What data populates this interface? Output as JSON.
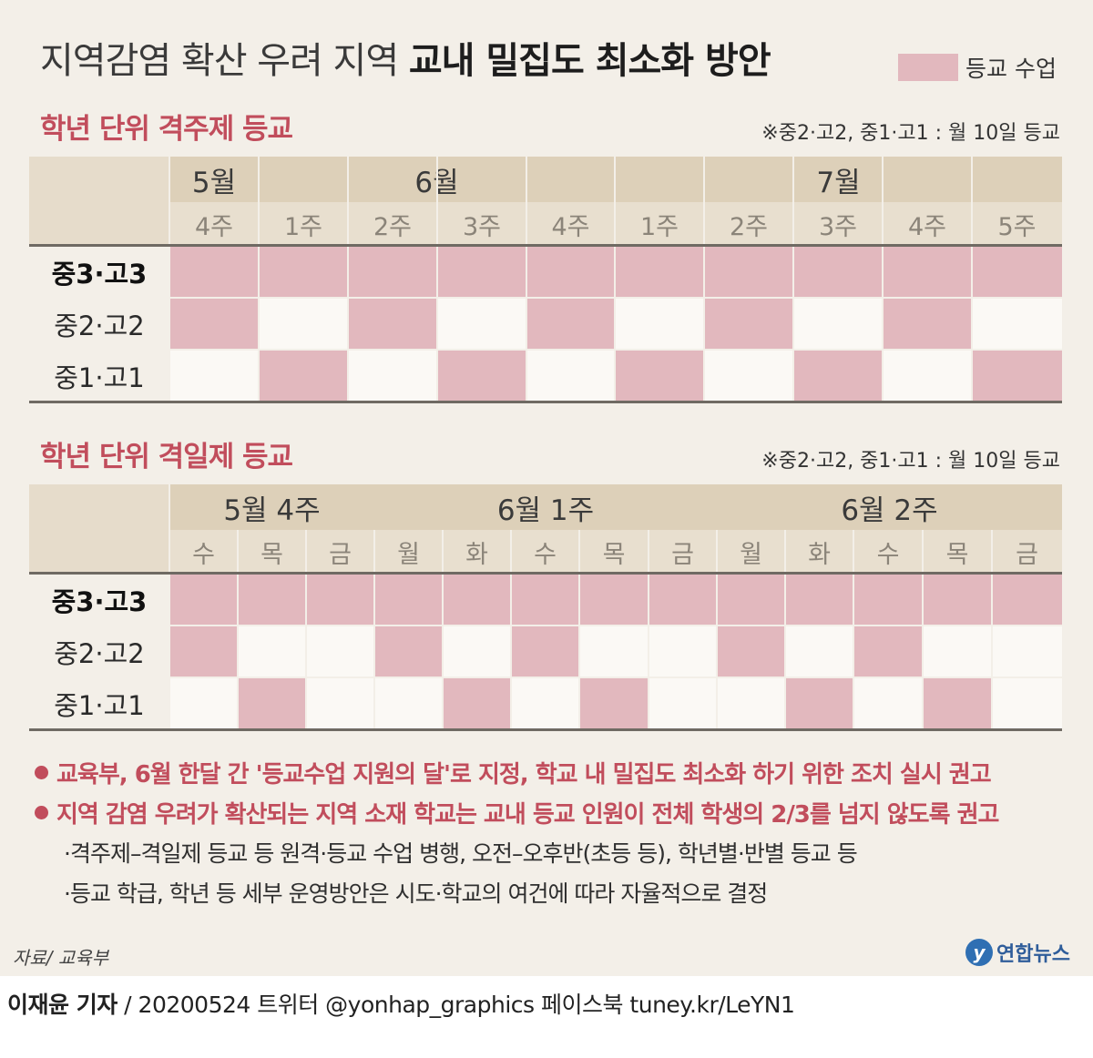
{
  "title": {
    "light": "지역감염 확산 우려 지역 ",
    "bold": "교내 밀집도 최소화 방안"
  },
  "legend": {
    "label": "등교 수업",
    "color": "#e2b8be"
  },
  "section1": {
    "title": "학년 단위 격주제 등교",
    "note": "※중2·고2, 중1·고1 : 월 10일 등교",
    "months": [
      "5월",
      "6월",
      "7월"
    ],
    "weeks": [
      "4주",
      "1주",
      "2주",
      "3주",
      "4주",
      "1주",
      "2주",
      "3주",
      "4주",
      "5주"
    ],
    "rows": [
      {
        "label": "중3·고3",
        "bold": true,
        "attend": [
          1,
          1,
          1,
          1,
          1,
          1,
          1,
          1,
          1,
          1
        ]
      },
      {
        "label": "중2·고2",
        "bold": false,
        "attend": [
          1,
          0,
          1,
          0,
          1,
          0,
          1,
          0,
          1,
          0
        ]
      },
      {
        "label": "중1·고1",
        "bold": false,
        "attend": [
          0,
          1,
          0,
          1,
          0,
          1,
          0,
          1,
          0,
          1
        ]
      }
    ]
  },
  "section2": {
    "title": "학년 단위 격일제 등교",
    "note": "※중2·고2, 중1·고1 : 월 10일 등교",
    "weeks": [
      "5월 4주",
      "6월 1주",
      "6월 2주"
    ],
    "days": [
      "수",
      "목",
      "금",
      "월",
      "화",
      "수",
      "목",
      "금",
      "월",
      "화",
      "수",
      "목",
      "금"
    ],
    "rows": [
      {
        "label": "중3·고3",
        "bold": true,
        "attend": [
          1,
          1,
          1,
          1,
          1,
          1,
          1,
          1,
          1,
          1,
          1,
          1,
          1
        ]
      },
      {
        "label": "중2·고2",
        "bold": false,
        "attend": [
          1,
          0,
          0,
          1,
          0,
          1,
          0,
          0,
          1,
          0,
          1,
          0,
          0
        ]
      },
      {
        "label": "중1·고1",
        "bold": false,
        "attend": [
          0,
          1,
          0,
          0,
          1,
          0,
          1,
          0,
          0,
          1,
          0,
          1,
          0
        ]
      }
    ]
  },
  "bullets": [
    "교육부, 6월 한달 간 '등교수업 지원의 달'로 지정, 학교 내 밀집도 최소화 하기 위한 조치 실시 권고",
    "지역 감염 우려가 확산되는 지역 소재 학교는 교내 등교 인원이 전체 학생의 2/3를 넘지 않도록 권고"
  ],
  "subnotes": [
    "·격주제–격일제 등교 등 원격·등교 수업 병행, 오전–오후반(초등 등), 학년별·반별 등교 등",
    "·등교 학급, 학년 등 세부 운영방안은 시도·학교의 여건에 따라 자율적으로 결정"
  ],
  "source": "자료/ 교육부",
  "logo": {
    "mark": "y",
    "name": "연합뉴스"
  },
  "credit": {
    "reporter": "이재윤 기자",
    "rest": " / 20200524   트위터 @yonhap_graphics  페이스북 tuney.kr/LeYN1"
  }
}
